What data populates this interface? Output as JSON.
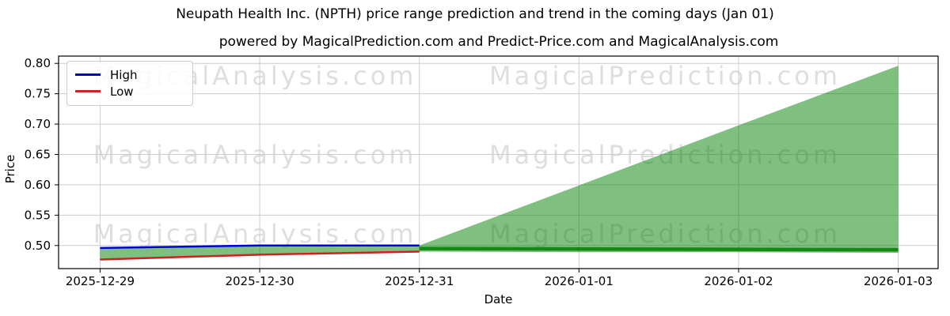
{
  "figure": {
    "title": "Neupath Health Inc. (NPTH) price range prediction and trend in the coming days (Jan 01)",
    "subtitle": "powered by MagicalPrediction.com and Predict-Price.com and MagicalAnalysis.com"
  },
  "watermarks": {
    "left_text": "MagicalAnalysis.com",
    "right_text": "MagicalPrediction.com",
    "color": "rgba(128,128,128,0.26)"
  },
  "chart_data": {
    "type": "line",
    "title": "Neupath Health Inc. (NPTH) price range prediction and trend in the coming days (Jan 01)",
    "subtitle": "powered by MagicalPrediction.com and Predict-Price.com and MagicalAnalysis.com",
    "xlabel": "Date",
    "ylabel": "Price",
    "grid": true,
    "grid_color": "#cccccc",
    "x_categories": [
      "2025-12-29",
      "2025-12-30",
      "2025-12-31",
      "2026-01-01",
      "2026-01-02",
      "2026-01-03"
    ],
    "y_ticks": [
      0.5,
      0.55,
      0.6,
      0.65,
      0.7,
      0.75,
      0.8
    ],
    "ylim": [
      0.462,
      0.812
    ],
    "xlim": [
      -0.26,
      5.25
    ],
    "legend": {
      "position": "upper-left",
      "entries": [
        {
          "label": "High",
          "color": "#0000dd"
        },
        {
          "label": "Low",
          "color": "#cc2222"
        }
      ]
    },
    "series": [
      {
        "name": "High",
        "color": "#0000dd",
        "width": 2.5,
        "x": [
          0,
          1,
          2
        ],
        "values": [
          0.496,
          0.5,
          0.5
        ]
      },
      {
        "name": "Low",
        "color": "#cc2222",
        "width": 2.5,
        "x": [
          0,
          1,
          2
        ],
        "values": [
          0.477,
          0.485,
          0.49
        ]
      },
      {
        "name": "forecast-trend",
        "color": "rgba(0,128,0,0.85)",
        "width": 4.5,
        "x": [
          2,
          5
        ],
        "values": [
          0.495,
          0.493
        ]
      }
    ],
    "band": {
      "name": "prediction-range",
      "fill": "rgba(0,128,0,0.5)",
      "x": [
        0,
        1,
        2,
        3,
        4,
        5
      ],
      "upper": [
        0.496,
        0.5,
        0.5,
        0.599,
        0.698,
        0.796
      ],
      "lower": [
        0.477,
        0.485,
        0.49,
        0.489,
        0.489,
        0.488
      ]
    }
  }
}
